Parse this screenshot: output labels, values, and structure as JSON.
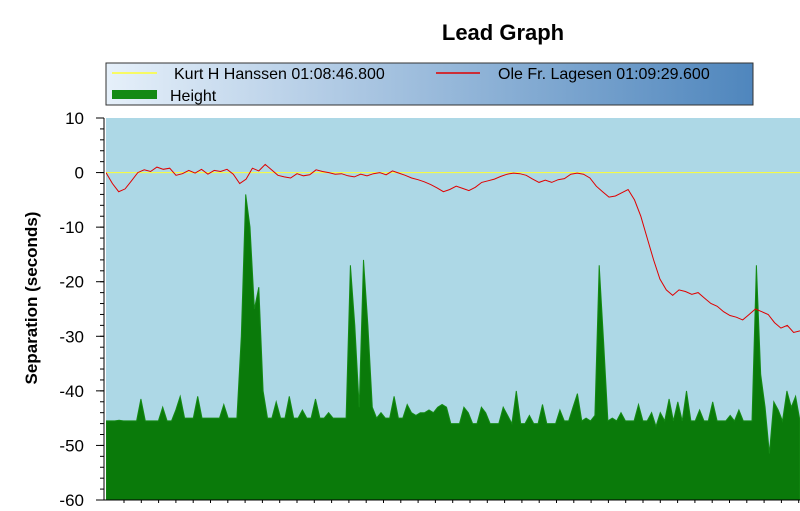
{
  "chart_data": {
    "type": "line",
    "title": "Lead Graph",
    "ylabel": "Separation (seconds)",
    "xlabel": "",
    "ylim": [
      -60,
      10
    ],
    "yticks": [
      10,
      0,
      -10,
      -20,
      -30,
      -40,
      -50,
      -60
    ],
    "grid": false,
    "legend_position": "top",
    "colors": {
      "plot_background": "#add8e6",
      "legend_gradient_start": "#e6f0fa",
      "legend_gradient_end": "#4f86bd",
      "reference_line": "#ffff33",
      "lead_line": "#e00000",
      "height_fill": "#148a14"
    },
    "series": [
      {
        "name": "Kurt H Hanssen 01:08:46.800",
        "kind": "line",
        "color": "#ffff33",
        "y": [
          0,
          0
        ]
      },
      {
        "name": "Ole Fr. Lagesen 01:09:29.600",
        "kind": "line",
        "color": "#e00000",
        "y": [
          0,
          -2,
          -3.5,
          -3,
          -1.5,
          0,
          0.5,
          0.2,
          1,
          0.6,
          0.8,
          -0.5,
          -0.2,
          0.4,
          -0.1,
          0.6,
          -0.3,
          0.4,
          0.2,
          0.6,
          -0.3,
          -2,
          -1.2,
          0.8,
          0.3,
          1.5,
          0.5,
          -0.5,
          -0.8,
          -1,
          -0.2,
          -0.6,
          -0.4,
          0.5,
          0.2,
          0,
          -0.3,
          -0.2,
          -0.6,
          -0.8,
          -0.3,
          -0.6,
          -0.2,
          0,
          -0.4,
          0.3,
          -0.1,
          -0.5,
          -1,
          -1.3,
          -1.7,
          -2.2,
          -2.8,
          -3.5,
          -3.1,
          -2.5,
          -2.9,
          -3.3,
          -2.7,
          -1.8,
          -1.5,
          -1.2,
          -0.7,
          -0.3,
          -0.1,
          -0.2,
          -0.5,
          -1.2,
          -1.8,
          -1.4,
          -1.8,
          -1.3,
          -1.1,
          -0.3,
          -0.1,
          -0.3,
          -1,
          -2.5,
          -3.5,
          -4.5,
          -4.3,
          -3.7,
          -3.1,
          -5,
          -8,
          -12,
          -16,
          -19.5,
          -21.5,
          -22.5,
          -21.5,
          -21.8,
          -22.3,
          -22,
          -23,
          -24,
          -24.5,
          -25.5,
          -26.2,
          -26.5,
          -27,
          -26,
          -25,
          -25.5,
          -26,
          -27.5,
          -28.5,
          -28,
          -29.3,
          -29
        ]
      },
      {
        "name": "Height",
        "kind": "area",
        "color": "#148a14",
        "y": [
          -45.5,
          -45.5,
          -45.5,
          -45.4,
          -45.5,
          -45.5,
          -45.5,
          -45.5,
          -41.5,
          -45.5,
          -45.5,
          -45.5,
          -45.5,
          -43,
          -45.5,
          -45.5,
          -43.5,
          -41,
          -45,
          -45,
          -45,
          -41,
          -45,
          -45,
          -45,
          -45,
          -45,
          -42.5,
          -45,
          -45,
          -45,
          -30,
          -4,
          -10,
          -25,
          -21,
          -40,
          -45,
          -45,
          -42,
          -45,
          -45,
          -41,
          -45,
          -45,
          -43.5,
          -45,
          -45,
          -41.5,
          -45,
          -45,
          -44,
          -45,
          -45,
          -45,
          -45,
          -17,
          -28,
          -43,
          -16,
          -28,
          -43,
          -45,
          -44,
          -45,
          -45,
          -41,
          -45,
          -45,
          -42.5,
          -44,
          -44.5,
          -44,
          -44,
          -43.5,
          -44,
          -43,
          -42.5,
          -43,
          -46,
          -46,
          -46,
          -43,
          -44,
          -46,
          -46,
          -43,
          -44,
          -46,
          -46,
          -46,
          -43,
          -44.5,
          -46,
          -40,
          -46,
          -46,
          -44.5,
          -46,
          -46,
          -42.5,
          -46,
          -46,
          -46,
          -43.5,
          -45.5,
          -45.5,
          -43,
          -40.5,
          -45.5,
          -45,
          -45.5,
          -44.5,
          -17,
          -31,
          -45.5,
          -45,
          -45.5,
          -44,
          -45.5,
          -45.5,
          -45.5,
          -42.5,
          -45.5,
          -45.5,
          -44,
          -46.5,
          -44,
          -45.5,
          -41.5,
          -45.5,
          -42,
          -45.5,
          -40,
          -45.5,
          -45.5,
          -43.5,
          -45.5,
          -45.5,
          -42,
          -45.5,
          -45.5,
          -45.5,
          -44.5,
          -45.5,
          -43.5,
          -45.5,
          -45.5,
          -45.5,
          -17,
          -37,
          -43,
          -51.5,
          -42,
          -43.5,
          -45.5,
          -40,
          -43,
          -41,
          -45.5
        ]
      }
    ]
  }
}
